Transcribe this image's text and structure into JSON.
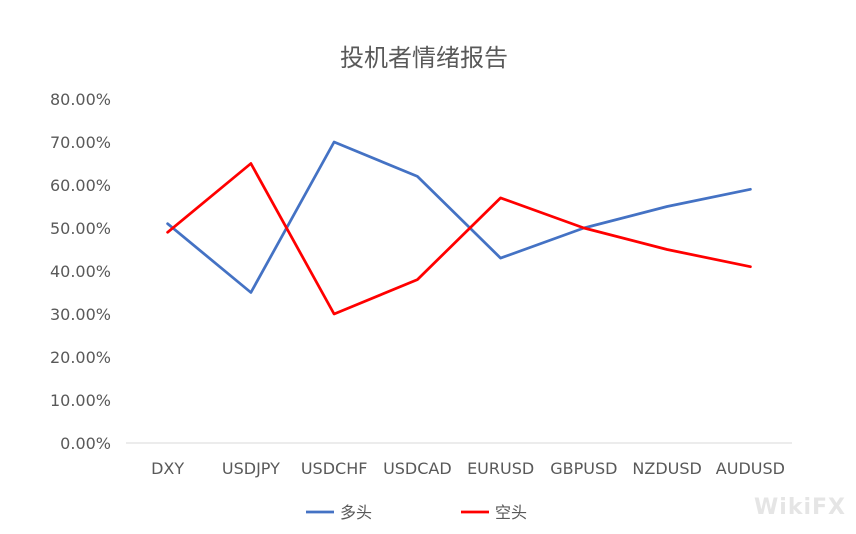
{
  "chart_data": {
    "type": "line",
    "title": "投机者情绪报告",
    "categories": [
      "DXY",
      "USDJPY",
      "USDCHF",
      "USDCAD",
      "EURUSD",
      "GBPUSD",
      "NZDUSD",
      "AUDUSD"
    ],
    "series": [
      {
        "name": "多头",
        "color": "#4472C4",
        "values": [
          51,
          35,
          70,
          62,
          43,
          50,
          55,
          59
        ]
      },
      {
        "name": "空头",
        "color": "#FF0000",
        "values": [
          49,
          65,
          30,
          38,
          57,
          50,
          45,
          41
        ]
      }
    ],
    "y_ticks": [
      "0.00%",
      "10.00%",
      "20.00%",
      "30.00%",
      "40.00%",
      "50.00%",
      "60.00%",
      "70.00%",
      "80.00%"
    ],
    "ylim": [
      0,
      80
    ],
    "y_unit": "percent",
    "grid": false,
    "legend_position": "bottom"
  },
  "watermark": "WikiFX"
}
